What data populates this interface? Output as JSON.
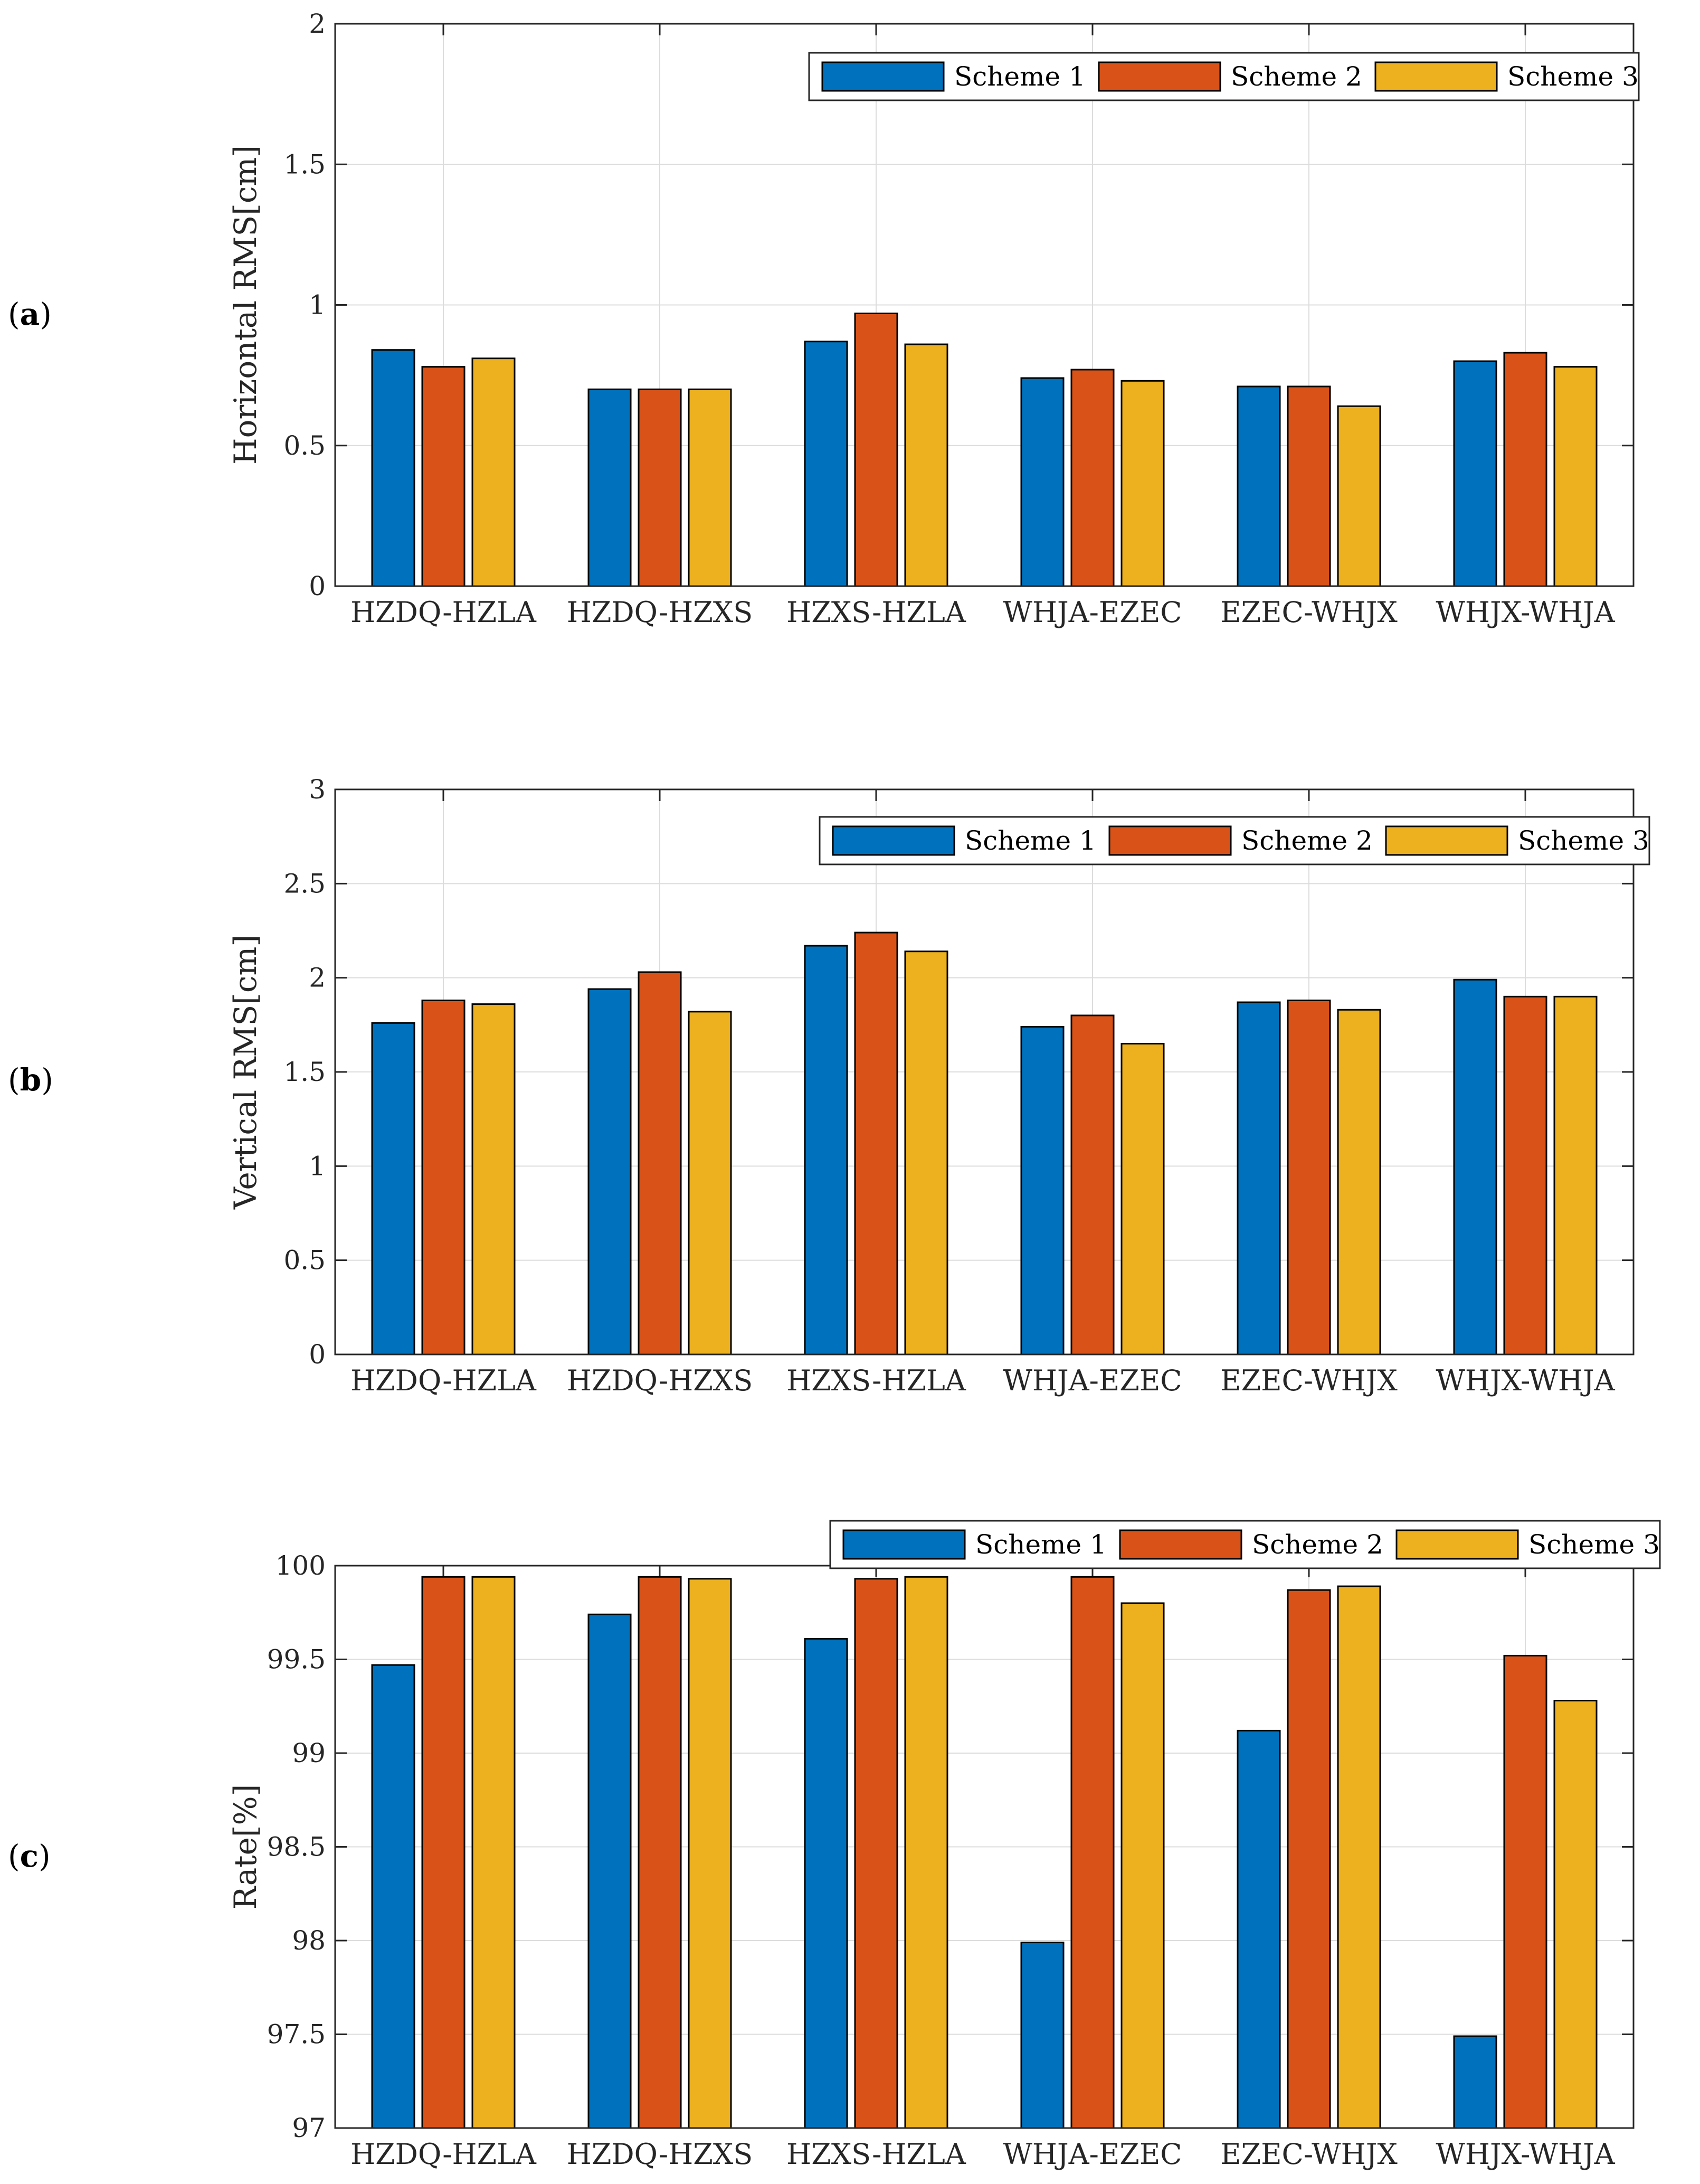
{
  "chart_data": [
    {
      "type": "bar",
      "panel_label": "a",
      "categories": [
        "HZDQ-HZLA",
        "HZDQ-HZXS",
        "HZXS-HZLA",
        "WHJA-EZEC",
        "EZEC-WHJX",
        "WHJX-WHJA"
      ],
      "series": [
        {
          "name": "Scheme 1",
          "values": [
            0.84,
            0.7,
            0.87,
            0.74,
            0.71,
            0.8
          ]
        },
        {
          "name": "Scheme 2",
          "values": [
            0.78,
            0.7,
            0.97,
            0.77,
            0.71,
            0.83
          ]
        },
        {
          "name": "Scheme 3",
          "values": [
            0.81,
            0.7,
            0.86,
            0.73,
            0.64,
            0.78
          ]
        }
      ],
      "ylabel": "Horizontal RMS[cm]",
      "xlabel": "",
      "ylim": [
        0,
        2
      ],
      "yticks": [
        "0",
        "0.5",
        "1",
        "1.5",
        "2"
      ],
      "grid": true,
      "legend_position": "top-right"
    },
    {
      "type": "bar",
      "panel_label": "b",
      "categories": [
        "HZDQ-HZLA",
        "HZDQ-HZXS",
        "HZXS-HZLA",
        "WHJA-EZEC",
        "EZEC-WHJX",
        "WHJX-WHJA"
      ],
      "series": [
        {
          "name": "Scheme 1",
          "values": [
            1.76,
            1.94,
            2.17,
            1.74,
            1.87,
            1.99
          ]
        },
        {
          "name": "Scheme 2",
          "values": [
            1.88,
            2.03,
            2.24,
            1.8,
            1.88,
            1.9
          ]
        },
        {
          "name": "Scheme 3",
          "values": [
            1.86,
            1.82,
            2.14,
            1.65,
            1.83,
            1.9
          ]
        }
      ],
      "ylabel": "Vertical RMS[cm]",
      "xlabel": "",
      "ylim": [
        0,
        3
      ],
      "yticks": [
        "0",
        "0.5",
        "1",
        "1.5",
        "2",
        "2.5",
        "3"
      ],
      "grid": true,
      "legend_position": "top-right"
    },
    {
      "type": "bar",
      "panel_label": "c",
      "categories": [
        "HZDQ-HZLA",
        "HZDQ-HZXS",
        "HZXS-HZLA",
        "WHJA-EZEC",
        "EZEC-WHJX",
        "WHJX-WHJA"
      ],
      "series": [
        {
          "name": "Scheme 1",
          "values": [
            99.47,
            99.74,
            99.61,
            97.99,
            99.12,
            97.49
          ]
        },
        {
          "name": "Scheme 2",
          "values": [
            99.94,
            99.94,
            99.93,
            99.94,
            99.87,
            99.52
          ]
        },
        {
          "name": "Scheme 3",
          "values": [
            99.94,
            99.93,
            99.94,
            99.8,
            99.89,
            99.28
          ]
        }
      ],
      "ylabel": "Rate[%]",
      "xlabel": "",
      "ylim": [
        97,
        100
      ],
      "yticks": [
        "97",
        "97.5",
        "98",
        "98.5",
        "99",
        "99.5",
        "100"
      ],
      "grid": true,
      "legend_position": "top-right (above axes)"
    }
  ],
  "colors": {
    "Scheme 1": "#0072BD",
    "Scheme 2": "#D95319",
    "Scheme 3": "#EDB120"
  }
}
